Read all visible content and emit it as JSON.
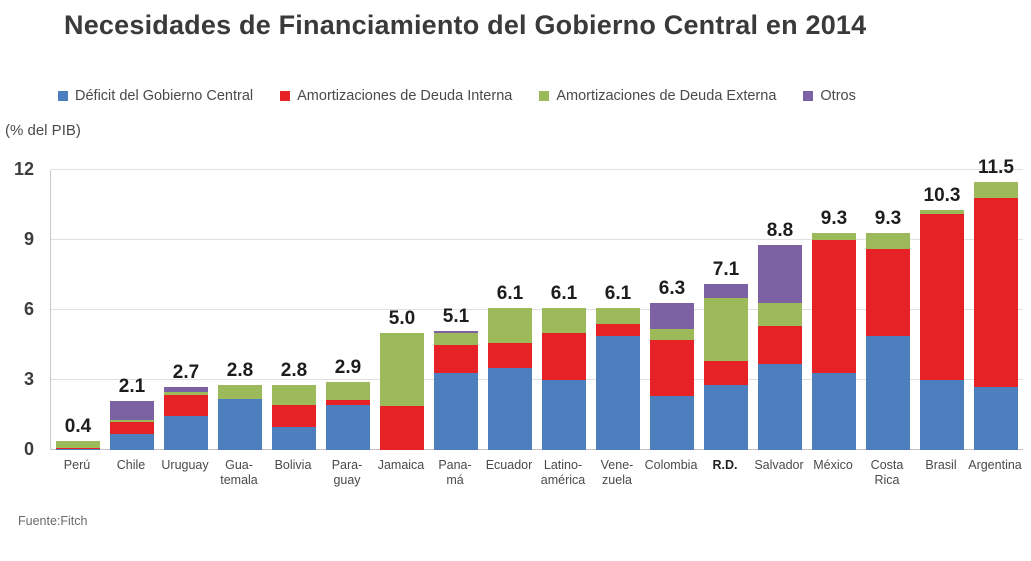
{
  "title": "Necesidades de Financiamiento del Gobierno Central en 2014",
  "source": "Fuente:Fitch",
  "chart_data": {
    "type": "bar",
    "stacked": true,
    "title": "Necesidades de Financiamiento del Gobierno Central en 2014",
    "ylabel": "(% del PIB)",
    "xlabel": "",
    "ylim": [
      0,
      12
    ],
    "yticks": [
      0,
      3,
      6,
      9,
      12
    ],
    "grid": true,
    "legend_position": "top",
    "series": [
      {
        "name": "Déficit del Gobierno Central",
        "color": "#4d7ebe"
      },
      {
        "name": "Amortizaciones de Deuda Interna",
        "color": "#e62227"
      },
      {
        "name": "Amortizaciones de Deuda Externa",
        "color": "#9cba59"
      },
      {
        "name": "Otros",
        "color": "#7c62a3"
      }
    ],
    "categories": [
      {
        "label": "Perú",
        "lines": [
          "Perú"
        ],
        "total": "0.4",
        "values": [
          0.05,
          0.05,
          0.3,
          0
        ]
      },
      {
        "label": "Chile",
        "lines": [
          "Chile"
        ],
        "total": "2.1",
        "values": [
          0.7,
          0.5,
          0.1,
          0.8
        ]
      },
      {
        "label": "Uruguay",
        "lines": [
          "Uruguay"
        ],
        "total": "2.7",
        "values": [
          1.45,
          0.9,
          0.15,
          0.2
        ]
      },
      {
        "label": "Guatemala",
        "lines": [
          "Gua-",
          "temala"
        ],
        "total": "2.8",
        "values": [
          2.2,
          0,
          0.6,
          0
        ]
      },
      {
        "label": "Bolivia",
        "lines": [
          "Bolivia"
        ],
        "total": "2.8",
        "values": [
          1.0,
          0.95,
          0.85,
          0
        ]
      },
      {
        "label": "Paraguay",
        "lines": [
          "Para-",
          "guay"
        ],
        "total": "2.9",
        "values": [
          1.95,
          0.2,
          0.75,
          0
        ]
      },
      {
        "label": "Jamaica",
        "lines": [
          "Jamaica"
        ],
        "total": "5.0",
        "values": [
          0,
          1.9,
          3.1,
          0
        ]
      },
      {
        "label": "Panamá",
        "lines": [
          "Pana-",
          "má"
        ],
        "total": "5.1",
        "values": [
          3.3,
          1.2,
          0.5,
          0.1
        ]
      },
      {
        "label": "Ecuador",
        "lines": [
          "Ecuador"
        ],
        "total": "6.1",
        "values": [
          3.5,
          1.1,
          1.5,
          0
        ]
      },
      {
        "label": "Latinoamérica",
        "lines": [
          "Latino-",
          "américa"
        ],
        "total": "6.1",
        "values": [
          3.0,
          2.0,
          1.1,
          0
        ]
      },
      {
        "label": "Venezuela",
        "lines": [
          "Vene-",
          "zuela"
        ],
        "total": "6.1",
        "values": [
          4.9,
          0.5,
          0.7,
          0
        ]
      },
      {
        "label": "Colombia",
        "lines": [
          "Colombia"
        ],
        "total": "6.3",
        "values": [
          2.3,
          2.4,
          0.5,
          1.1
        ]
      },
      {
        "label": "R.D.",
        "lines": [
          "R.D."
        ],
        "bold": true,
        "total": "7.1",
        "values": [
          2.8,
          1.0,
          2.7,
          0.6
        ]
      },
      {
        "label": "Salvador",
        "lines": [
          "Salvador"
        ],
        "total": "8.8",
        "values": [
          3.7,
          1.6,
          1.0,
          2.5
        ]
      },
      {
        "label": "México",
        "lines": [
          "México"
        ],
        "total": "9.3",
        "values": [
          3.3,
          5.7,
          0.3,
          0
        ]
      },
      {
        "label": "Costa Rica",
        "lines": [
          "Costa",
          "Rica"
        ],
        "total": "9.3",
        "values": [
          4.9,
          3.7,
          0.7,
          0
        ]
      },
      {
        "label": "Brasil",
        "lines": [
          "Brasil"
        ],
        "total": "10.3",
        "values": [
          3.0,
          7.1,
          0.2,
          0
        ]
      },
      {
        "label": "Argentina",
        "lines": [
          "Argentina"
        ],
        "total": "11.5",
        "values": [
          2.7,
          8.1,
          0.7,
          0
        ]
      }
    ]
  }
}
